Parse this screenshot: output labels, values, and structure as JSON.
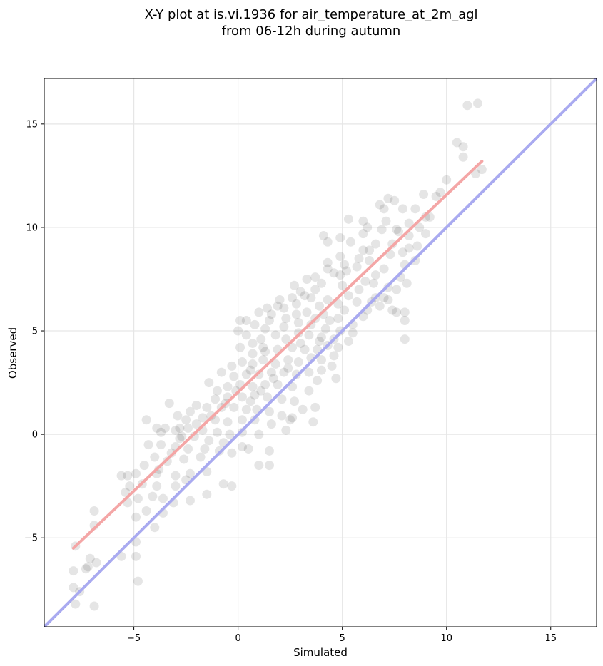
{
  "chart_data": {
    "type": "scatter",
    "title": "X-Y plot at is.vi.1936 for air_temperature_at_2m_agl",
    "subtitle": "from 06-12h during autumn",
    "xlabel": "Simulated",
    "ylabel": "Observed",
    "xlim": [
      -9.3,
      17.2
    ],
    "ylim": [
      -9.3,
      17.2
    ],
    "xticks": [
      -5,
      0,
      5,
      10,
      15
    ],
    "yticks": [
      -5,
      0,
      5,
      10,
      15
    ],
    "xtick_labels": [
      "−5",
      "0",
      "5",
      "10",
      "15"
    ],
    "ytick_labels": [
      "−5",
      "0",
      "5",
      "10",
      "15"
    ],
    "grid": true,
    "legend": "none",
    "point_color": "#000000",
    "fit_line_color": "#f4a6a6",
    "identity_line_color": "#a9aaf0",
    "fit_line": {
      "x": [
        -7.9,
        11.7
      ],
      "y": [
        -5.5,
        13.2
      ]
    },
    "identity_line": {
      "x": [
        -9.3,
        17.2
      ],
      "y": [
        -9.3,
        17.2
      ]
    },
    "points": [
      [
        11.5,
        16.0
      ],
      [
        11.0,
        15.9
      ],
      [
        10.5,
        14.1
      ],
      [
        10.8,
        13.9
      ],
      [
        10.8,
        13.4
      ],
      [
        11.4,
        12.6
      ],
      [
        11.7,
        12.8
      ],
      [
        10.0,
        12.3
      ],
      [
        9.7,
        11.7
      ],
      [
        9.5,
        11.5
      ],
      [
        8.9,
        11.6
      ],
      [
        7.2,
        11.4
      ],
      [
        7.5,
        11.3
      ],
      [
        6.8,
        11.1
      ],
      [
        7.9,
        10.9
      ],
      [
        8.5,
        10.9
      ],
      [
        9.2,
        10.5
      ],
      [
        9.0,
        10.5
      ],
      [
        5.3,
        10.4
      ],
      [
        6.2,
        10.0
      ],
      [
        4.1,
        9.6
      ],
      [
        4.3,
        9.3
      ],
      [
        4.9,
        9.5
      ],
      [
        6.0,
        9.7
      ],
      [
        7.6,
        9.9
      ],
      [
        8.7,
        10.0
      ],
      [
        8.2,
        9.6
      ],
      [
        6.6,
        9.2
      ],
      [
        5.4,
        9.3
      ],
      [
        4.9,
        8.6
      ],
      [
        8.2,
        9.0
      ],
      [
        7.3,
        8.7
      ],
      [
        6.3,
        8.4
      ],
      [
        5.7,
        8.1
      ],
      [
        5.2,
        7.9
      ],
      [
        7.0,
        8.0
      ],
      [
        7.8,
        7.6
      ],
      [
        8.1,
        7.3
      ],
      [
        7.6,
        7.0
      ],
      [
        7.0,
        6.6
      ],
      [
        6.6,
        7.7
      ],
      [
        6.1,
        7.4
      ],
      [
        4.3,
        8.3
      ],
      [
        4.3,
        8.0
      ],
      [
        3.3,
        7.5
      ],
      [
        3.7,
        7.6
      ],
      [
        4.9,
        7.7
      ],
      [
        5.0,
        7.2
      ],
      [
        3.7,
        7.0
      ],
      [
        3.5,
        6.6
      ],
      [
        3.0,
        6.9
      ],
      [
        2.8,
        6.3
      ],
      [
        2.6,
        6.6
      ],
      [
        2.2,
        6.1
      ],
      [
        3.9,
        6.2
      ],
      [
        4.3,
        6.5
      ],
      [
        4.8,
        6.3
      ],
      [
        5.3,
        6.7
      ],
      [
        5.7,
        6.4
      ],
      [
        6.2,
        6.0
      ],
      [
        6.8,
        6.2
      ],
      [
        7.4,
        6.0
      ],
      [
        6.4,
        6.4
      ],
      [
        6.0,
        5.7
      ],
      [
        5.5,
        5.3
      ],
      [
        4.8,
        5.6
      ],
      [
        4.1,
        5.8
      ],
      [
        3.7,
        5.6
      ],
      [
        3.3,
        5.9
      ],
      [
        2.8,
        5.8
      ],
      [
        2.3,
        5.6
      ],
      [
        1.9,
        6.2
      ],
      [
        1.4,
        6.1
      ],
      [
        1.0,
        5.9
      ],
      [
        1.5,
        5.5
      ],
      [
        0.4,
        5.5
      ],
      [
        0.1,
        5.5
      ],
      [
        0.8,
        5.3
      ],
      [
        1.3,
        5.1
      ],
      [
        2.2,
        5.2
      ],
      [
        2.9,
        5.4
      ],
      [
        3.5,
        5.3
      ],
      [
        4.2,
        5.1
      ],
      [
        4.9,
        5.0
      ],
      [
        5.5,
        4.9
      ],
      [
        5.3,
        4.5
      ],
      [
        4.6,
        4.6
      ],
      [
        4.0,
        4.7
      ],
      [
        3.4,
        4.8
      ],
      [
        2.9,
        4.9
      ],
      [
        2.3,
        4.6
      ],
      [
        1.8,
        4.8
      ],
      [
        1.1,
        4.6
      ],
      [
        0.7,
        4.4
      ],
      [
        0.0,
        5.0
      ],
      [
        0.4,
        4.8
      ],
      [
        0.1,
        4.2
      ],
      [
        0.7,
        3.9
      ],
      [
        1.3,
        4.0
      ],
      [
        1.9,
        4.1
      ],
      [
        2.6,
        4.2
      ],
      [
        3.2,
        4.1
      ],
      [
        3.8,
        4.1
      ],
      [
        4.3,
        4.3
      ],
      [
        4.8,
        4.2
      ],
      [
        4.6,
        3.8
      ],
      [
        4.0,
        3.6
      ],
      [
        3.5,
        3.7
      ],
      [
        2.9,
        3.5
      ],
      [
        2.4,
        3.6
      ],
      [
        1.8,
        3.4
      ],
      [
        1.2,
        3.6
      ],
      [
        0.7,
        3.4
      ],
      [
        0.2,
        3.5
      ],
      [
        -0.3,
        3.3
      ],
      [
        -0.8,
        3.0
      ],
      [
        -0.2,
        2.8
      ],
      [
        0.4,
        2.9
      ],
      [
        1.0,
        2.9
      ],
      [
        1.6,
        3.0
      ],
      [
        2.2,
        3.0
      ],
      [
        2.8,
        2.9
      ],
      [
        3.4,
        3.0
      ],
      [
        4.0,
        3.1
      ],
      [
        4.5,
        3.3
      ],
      [
        4.7,
        2.7
      ],
      [
        3.8,
        2.6
      ],
      [
        3.4,
        2.1
      ],
      [
        2.6,
        2.3
      ],
      [
        1.9,
        2.4
      ],
      [
        1.3,
        2.4
      ],
      [
        0.7,
        2.3
      ],
      [
        0.1,
        2.4
      ],
      [
        -0.5,
        2.3
      ],
      [
        -1.0,
        2.1
      ],
      [
        -1.4,
        2.5
      ],
      [
        -1.1,
        1.7
      ],
      [
        -0.5,
        1.8
      ],
      [
        0.2,
        1.8
      ],
      [
        0.8,
        1.9
      ],
      [
        1.4,
        1.8
      ],
      [
        2.1,
        1.7
      ],
      [
        2.7,
        1.6
      ],
      [
        3.1,
        1.2
      ],
      [
        3.7,
        1.3
      ],
      [
        3.6,
        0.6
      ],
      [
        2.6,
        0.8
      ],
      [
        2.1,
        0.9
      ],
      [
        1.5,
        1.1
      ],
      [
        0.9,
        1.2
      ],
      [
        0.4,
        1.2
      ],
      [
        -0.2,
        1.3
      ],
      [
        -0.8,
        1.3
      ],
      [
        -1.5,
        1.3
      ],
      [
        -2.0,
        1.4
      ],
      [
        -2.3,
        1.1
      ],
      [
        -2.9,
        0.9
      ],
      [
        -3.3,
        1.5
      ],
      [
        -2.5,
        0.7
      ],
      [
        -1.7,
        0.8
      ],
      [
        -1.1,
        0.7
      ],
      [
        -0.5,
        0.6
      ],
      [
        0.2,
        0.7
      ],
      [
        0.8,
        0.7
      ],
      [
        1.6,
        0.5
      ],
      [
        2.3,
        0.2
      ],
      [
        2.5,
        0.7
      ],
      [
        1.0,
        0.0
      ],
      [
        0.2,
        0.1
      ],
      [
        -0.4,
        0.0
      ],
      [
        -1.0,
        0.1
      ],
      [
        -1.7,
        0.2
      ],
      [
        -2.4,
        0.3
      ],
      [
        -3.0,
        0.2
      ],
      [
        -3.5,
        0.3
      ],
      [
        -3.9,
        0.3
      ],
      [
        -4.4,
        0.7
      ],
      [
        -3.7,
        0.1
      ],
      [
        -2.8,
        -0.2
      ],
      [
        -2.1,
        -0.1
      ],
      [
        -1.4,
        -0.3
      ],
      [
        -0.7,
        -0.4
      ],
      [
        0.2,
        -0.6
      ],
      [
        0.5,
        -0.7
      ],
      [
        1.5,
        -0.8
      ],
      [
        1.5,
        -1.5
      ],
      [
        1.0,
        -1.5
      ],
      [
        -0.3,
        -0.9
      ],
      [
        -0.9,
        -0.8
      ],
      [
        -1.6,
        -0.7
      ],
      [
        -2.4,
        -0.7
      ],
      [
        -3.0,
        -0.6
      ],
      [
        -3.7,
        -0.5
      ],
      [
        -4.3,
        -0.5
      ],
      [
        -4.0,
        -1.1
      ],
      [
        -3.4,
        -1.3
      ],
      [
        -2.6,
        -1.2
      ],
      [
        -1.8,
        -1.1
      ],
      [
        -1.5,
        -1.8
      ],
      [
        -2.3,
        -1.9
      ],
      [
        -3.0,
        -2.0
      ],
      [
        -3.8,
        -1.7
      ],
      [
        -4.5,
        -1.5
      ],
      [
        -4.9,
        -1.9
      ],
      [
        -5.3,
        -2.0
      ],
      [
        -5.2,
        -2.5
      ],
      [
        -4.6,
        -2.4
      ],
      [
        -3.9,
        -2.5
      ],
      [
        -3.0,
        -2.5
      ],
      [
        -2.5,
        -2.2
      ],
      [
        -1.5,
        -2.9
      ],
      [
        -0.7,
        -2.4
      ],
      [
        -0.3,
        -2.5
      ],
      [
        -2.3,
        -3.2
      ],
      [
        -3.1,
        -3.3
      ],
      [
        -3.6,
        -3.1
      ],
      [
        -4.1,
        -3.0
      ],
      [
        -4.8,
        -3.1
      ],
      [
        -5.3,
        -3.3
      ],
      [
        -5.4,
        -2.8
      ],
      [
        -5.6,
        -2.0
      ],
      [
        -4.0,
        -4.5
      ],
      [
        -4.4,
        -3.7
      ],
      [
        -3.6,
        -3.8
      ],
      [
        -4.9,
        -4.0
      ],
      [
        -4.9,
        -5.2
      ],
      [
        -6.9,
        -3.7
      ],
      [
        -6.9,
        -4.4
      ],
      [
        -5.6,
        -5.9
      ],
      [
        -4.9,
        -5.9
      ],
      [
        -7.8,
        -5.4
      ],
      [
        -7.1,
        -6.0
      ],
      [
        -7.2,
        -6.4
      ],
      [
        -7.3,
        -6.5
      ],
      [
        -6.8,
        -6.2
      ],
      [
        -7.9,
        -6.6
      ],
      [
        -7.6,
        -7.6
      ],
      [
        -7.9,
        -7.4
      ],
      [
        -7.8,
        -8.2
      ],
      [
        -6.9,
        -8.3
      ],
      [
        -4.8,
        -7.1
      ],
      [
        7.1,
        10.3
      ],
      [
        6.9,
        9.9
      ],
      [
        7.4,
        9.2
      ],
      [
        7.9,
        8.8
      ],
      [
        6.3,
        8.9
      ],
      [
        5.8,
        8.5
      ],
      [
        5.1,
        8.2
      ],
      [
        4.6,
        7.8
      ],
      [
        4.0,
        7.3
      ],
      [
        3.2,
        6.7
      ],
      [
        2.7,
        7.2
      ],
      [
        2.0,
        6.5
      ],
      [
        1.6,
        5.8
      ],
      [
        1.2,
        4.2
      ],
      [
        0.6,
        3.1
      ],
      [
        -0.1,
        2.1
      ],
      [
        -0.6,
        1.5
      ],
      [
        -1.3,
        0.9
      ],
      [
        -2.0,
        0.5
      ],
      [
        -2.7,
        -0.1
      ],
      [
        -3.2,
        -0.9
      ],
      [
        -3.9,
        -1.9
      ],
      [
        -2.8,
        0.3
      ],
      [
        5.8,
        7.0
      ],
      [
        6.5,
        7.3
      ],
      [
        7.2,
        7.1
      ],
      [
        8.0,
        8.2
      ],
      [
        8.6,
        9.1
      ],
      [
        8.2,
        10.2
      ],
      [
        6.0,
        8.9
      ],
      [
        5.1,
        6.0
      ],
      [
        4.4,
        5.5
      ],
      [
        3.9,
        4.5
      ],
      [
        3.0,
        4.4
      ],
      [
        2.4,
        3.2
      ],
      [
        1.7,
        2.7
      ],
      [
        1.1,
        2.1
      ],
      [
        0.6,
        1.6
      ],
      [
        8.0,
        5.9
      ],
      [
        8.0,
        5.5
      ],
      [
        7.6,
        5.9
      ],
      [
        8.0,
        4.6
      ],
      [
        7.2,
        6.5
      ],
      [
        6.6,
        6.6
      ],
      [
        8.5,
        8.4
      ],
      [
        9.0,
        9.7
      ],
      [
        7.7,
        9.8
      ],
      [
        7.0,
        10.9
      ],
      [
        6.0,
        10.3
      ]
    ]
  }
}
